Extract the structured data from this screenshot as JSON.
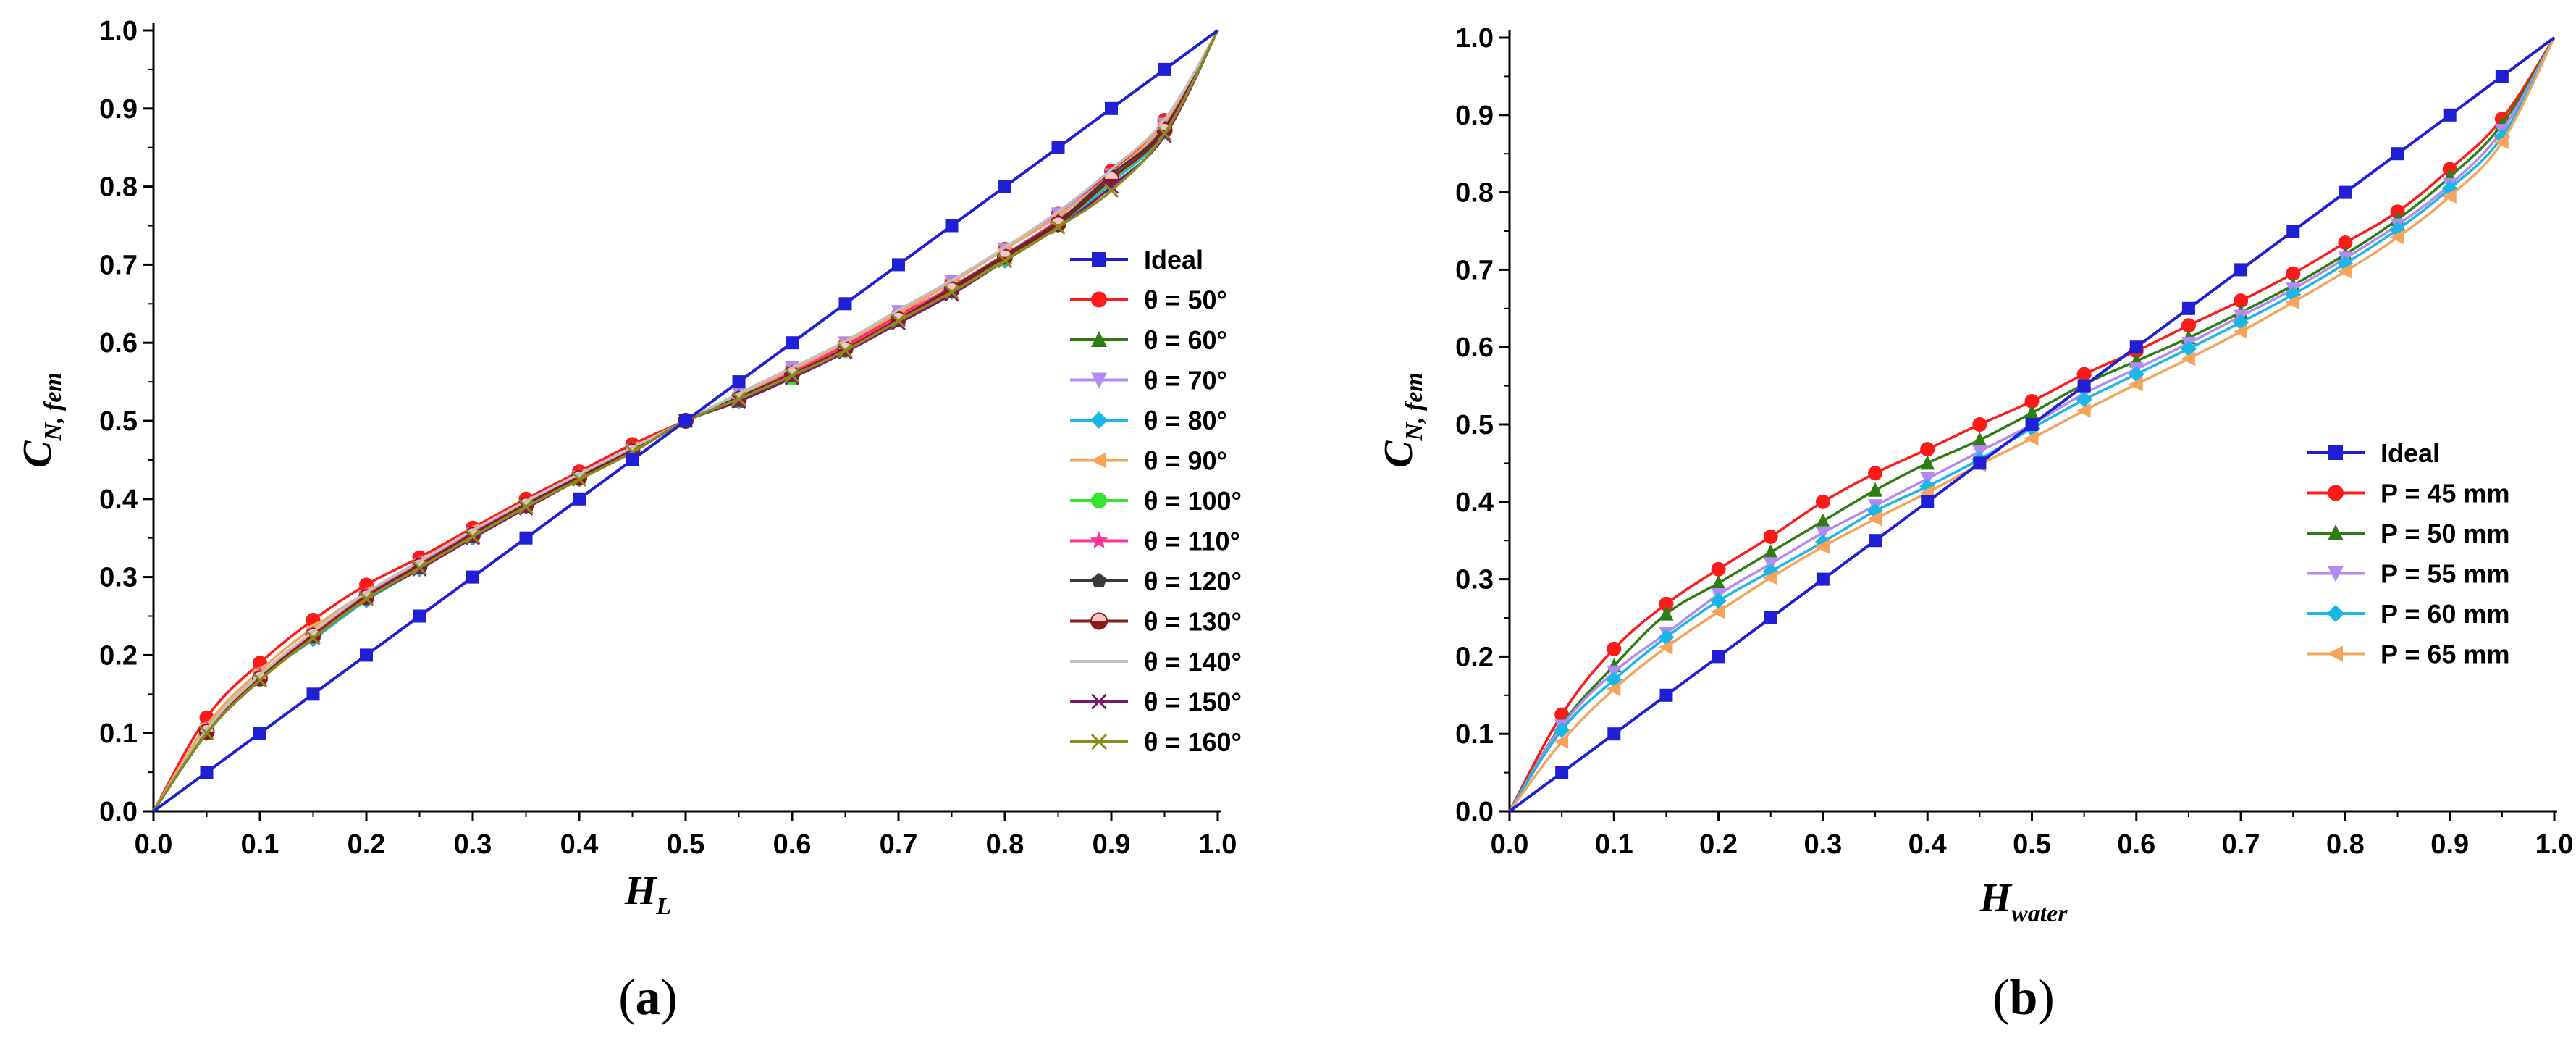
{
  "chart_data": [
    {
      "type": "line",
      "panel": "a",
      "panel_label_open": "(",
      "panel_label_letter": "a",
      "panel_label_close": ")",
      "xlabel_main": "H",
      "xlabel_sub": "L",
      "ylabel_main": "C",
      "ylabel_sub": "N, fem",
      "xlim": [
        0,
        1
      ],
      "ylim": [
        0,
        1
      ],
      "x_ticks": [
        "0.0",
        "0.1",
        "0.2",
        "0.3",
        "0.4",
        "0.5",
        "0.6",
        "0.7",
        "0.8",
        "0.9",
        "1.0"
      ],
      "y_ticks": [
        "0.0",
        "0.1",
        "0.2",
        "0.3",
        "0.4",
        "0.5",
        "0.6",
        "0.7",
        "0.8",
        "0.9",
        "1.0"
      ],
      "legend_position": "right-middle",
      "x": [
        0.0,
        0.05,
        0.1,
        0.15,
        0.2,
        0.25,
        0.3,
        0.35,
        0.4,
        0.45,
        0.5,
        0.55,
        0.6,
        0.65,
        0.7,
        0.75,
        0.8,
        0.85,
        0.9,
        0.95,
        1.0
      ],
      "series": [
        {
          "name": "Ideal",
          "label": "Ideal",
          "color": "#1f1fd6",
          "marker": "square",
          "values": [
            0.0,
            0.05,
            0.1,
            0.15,
            0.2,
            0.25,
            0.3,
            0.35,
            0.4,
            0.45,
            0.5,
            0.55,
            0.6,
            0.65,
            0.7,
            0.75,
            0.8,
            0.85,
            0.9,
            0.95,
            1.0
          ]
        },
        {
          "name": "50",
          "label": "θ = 50°",
          "color": "#ff1a1a",
          "marker": "circle",
          "values": [
            0.0,
            0.12,
            0.19,
            0.245,
            0.29,
            0.325,
            0.363,
            0.4,
            0.435,
            0.47,
            0.5,
            0.53,
            0.565,
            0.598,
            0.636,
            0.678,
            0.72,
            0.765,
            0.82,
            0.885,
            1.0
          ]
        },
        {
          "name": "60",
          "label": "θ = 60°",
          "color": "#2e7d14",
          "marker": "triangle-up",
          "values": [
            0.0,
            0.1,
            0.175,
            0.225,
            0.275,
            0.318,
            0.355,
            0.393,
            0.43,
            0.465,
            0.5,
            0.525,
            0.555,
            0.59,
            0.63,
            0.67,
            0.71,
            0.755,
            0.81,
            0.875,
            1.0
          ]
        },
        {
          "name": "70",
          "label": "θ = 70°",
          "color": "#b38bf0",
          "marker": "triangle-down",
          "values": [
            0.0,
            0.105,
            0.175,
            0.225,
            0.275,
            0.315,
            0.355,
            0.39,
            0.428,
            0.462,
            0.5,
            0.535,
            0.568,
            0.6,
            0.64,
            0.678,
            0.72,
            0.765,
            0.815,
            0.88,
            1.0
          ]
        },
        {
          "name": "80",
          "label": "θ = 80°",
          "color": "#1ab6e8",
          "marker": "diamond",
          "values": [
            0.0,
            0.1,
            0.17,
            0.22,
            0.27,
            0.31,
            0.35,
            0.39,
            0.425,
            0.46,
            0.5,
            0.525,
            0.558,
            0.59,
            0.63,
            0.665,
            0.705,
            0.75,
            0.805,
            0.87,
            1.0
          ]
        },
        {
          "name": "90",
          "label": "θ = 90°",
          "color": "#f5a45a",
          "marker": "triangle-left",
          "values": [
            0.0,
            0.11,
            0.18,
            0.235,
            0.28,
            0.32,
            0.36,
            0.395,
            0.43,
            0.465,
            0.5,
            0.532,
            0.565,
            0.6,
            0.638,
            0.677,
            0.72,
            0.762,
            0.815,
            0.882,
            1.0
          ]
        },
        {
          "name": "100",
          "label": "θ = 100°",
          "color": "#33e633",
          "marker": "circle",
          "values": [
            0.0,
            0.1,
            0.172,
            0.225,
            0.275,
            0.315,
            0.355,
            0.392,
            0.428,
            0.462,
            0.5,
            0.527,
            0.555,
            0.59,
            0.63,
            0.668,
            0.708,
            0.752,
            0.808,
            0.872,
            1.0
          ]
        },
        {
          "name": "110",
          "label": "θ = 110°",
          "color": "#ff3399",
          "marker": "star",
          "values": [
            0.0,
            0.105,
            0.175,
            0.228,
            0.278,
            0.318,
            0.357,
            0.393,
            0.43,
            0.463,
            0.5,
            0.53,
            0.562,
            0.595,
            0.633,
            0.672,
            0.713,
            0.757,
            0.81,
            0.876,
            1.0
          ]
        },
        {
          "name": "120",
          "label": "θ = 120°",
          "color": "#3a3a3a",
          "marker": "pentagon",
          "values": [
            0.0,
            0.1,
            0.17,
            0.225,
            0.275,
            0.315,
            0.355,
            0.393,
            0.428,
            0.462,
            0.5,
            0.53,
            0.56,
            0.592,
            0.63,
            0.67,
            0.712,
            0.755,
            0.815,
            0.875,
            1.0
          ]
        },
        {
          "name": "130",
          "label": "θ = 130°",
          "color": "#8b1a1a",
          "marker": "half-circle",
          "values": [
            0.0,
            0.102,
            0.17,
            0.225,
            0.274,
            0.314,
            0.354,
            0.392,
            0.427,
            0.461,
            0.5,
            0.528,
            0.56,
            0.592,
            0.63,
            0.668,
            0.71,
            0.752,
            0.81,
            0.872,
            1.0
          ]
        },
        {
          "name": "140",
          "label": "θ = 140°",
          "color": "#c0c0c0",
          "marker": "none",
          "values": [
            0.0,
            0.105,
            0.175,
            0.23,
            0.28,
            0.32,
            0.36,
            0.397,
            0.432,
            0.466,
            0.5,
            0.535,
            0.568,
            0.602,
            0.642,
            0.68,
            0.722,
            0.768,
            0.822,
            0.886,
            1.0
          ]
        },
        {
          "name": "150",
          "label": "θ = 150°",
          "color": "#7a1a6b",
          "marker": "x",
          "values": [
            0.0,
            0.1,
            0.168,
            0.222,
            0.272,
            0.31,
            0.35,
            0.388,
            0.425,
            0.46,
            0.5,
            0.525,
            0.555,
            0.588,
            0.625,
            0.662,
            0.705,
            0.748,
            0.8,
            0.865,
            1.0
          ]
        },
        {
          "name": "160",
          "label": "θ = 160°",
          "color": "#8c8c1a",
          "marker": "x",
          "values": [
            0.0,
            0.1,
            0.168,
            0.222,
            0.272,
            0.312,
            0.352,
            0.39,
            0.425,
            0.46,
            0.5,
            0.528,
            0.558,
            0.59,
            0.628,
            0.665,
            0.705,
            0.748,
            0.795,
            0.868,
            1.0
          ]
        }
      ]
    },
    {
      "type": "line",
      "panel": "b",
      "panel_label_open": "(",
      "panel_label_letter": "b",
      "panel_label_close": ")",
      "xlabel_main": "H",
      "xlabel_sub": "water",
      "ylabel_main": "C",
      "ylabel_sub": "N, fem",
      "xlim": [
        0,
        1
      ],
      "ylim": [
        0,
        1
      ],
      "x_ticks": [
        "0.0",
        "0.1",
        "0.2",
        "0.3",
        "0.4",
        "0.5",
        "0.6",
        "0.7",
        "0.8",
        "0.9",
        "1.0"
      ],
      "y_ticks": [
        "0.0",
        "0.1",
        "0.2",
        "0.3",
        "0.4",
        "0.5",
        "0.6",
        "0.7",
        "0.8",
        "0.9",
        "1.0"
      ],
      "legend_position": "bottom-right",
      "x": [
        0.0,
        0.05,
        0.1,
        0.15,
        0.2,
        0.25,
        0.3,
        0.35,
        0.4,
        0.45,
        0.5,
        0.55,
        0.6,
        0.65,
        0.7,
        0.75,
        0.8,
        0.85,
        0.9,
        0.95,
        1.0
      ],
      "series": [
        {
          "name": "Ideal",
          "label": "Ideal",
          "color": "#1f1fd6",
          "marker": "square",
          "values": [
            0.0,
            0.05,
            0.1,
            0.15,
            0.2,
            0.25,
            0.3,
            0.35,
            0.4,
            0.45,
            0.5,
            0.55,
            0.6,
            0.65,
            0.7,
            0.75,
            0.8,
            0.85,
            0.9,
            0.95,
            1.0
          ]
        },
        {
          "name": "P45",
          "label": "P = 45 mm",
          "color": "#ff1a1a",
          "marker": "circle",
          "values": [
            0.0,
            0.125,
            0.21,
            0.268,
            0.313,
            0.355,
            0.4,
            0.437,
            0.468,
            0.5,
            0.53,
            0.565,
            0.595,
            0.628,
            0.66,
            0.695,
            0.735,
            0.775,
            0.83,
            0.895,
            1.0
          ]
        },
        {
          "name": "P50",
          "label": "P = 50 mm",
          "color": "#2e7d14",
          "marker": "triangle-up",
          "values": [
            0.0,
            0.112,
            0.188,
            0.255,
            0.295,
            0.335,
            0.375,
            0.415,
            0.45,
            0.48,
            0.515,
            0.552,
            0.582,
            0.612,
            0.645,
            0.68,
            0.72,
            0.765,
            0.82,
            0.888,
            1.0
          ]
        },
        {
          "name": "P55",
          "label": "P = 55 mm",
          "color": "#b38bf0",
          "marker": "triangle-down",
          "values": [
            0.0,
            0.11,
            0.18,
            0.23,
            0.28,
            0.32,
            0.36,
            0.395,
            0.43,
            0.465,
            0.5,
            0.54,
            0.572,
            0.605,
            0.64,
            0.675,
            0.715,
            0.758,
            0.81,
            0.88,
            1.0
          ]
        },
        {
          "name": "P60",
          "label": "P = 60 mm",
          "color": "#1ab6e8",
          "marker": "diamond",
          "values": [
            0.0,
            0.105,
            0.17,
            0.225,
            0.272,
            0.31,
            0.348,
            0.388,
            0.42,
            0.455,
            0.495,
            0.532,
            0.565,
            0.598,
            0.632,
            0.668,
            0.708,
            0.752,
            0.805,
            0.872,
            1.0
          ]
        },
        {
          "name": "P65",
          "label": "P = 65 mm",
          "color": "#f5a45a",
          "marker": "triangle-left",
          "values": [
            0.0,
            0.09,
            0.158,
            0.212,
            0.258,
            0.302,
            0.342,
            0.378,
            0.412,
            0.448,
            0.482,
            0.518,
            0.552,
            0.585,
            0.62,
            0.658,
            0.698,
            0.742,
            0.795,
            0.865,
            1.0
          ]
        }
      ]
    }
  ]
}
